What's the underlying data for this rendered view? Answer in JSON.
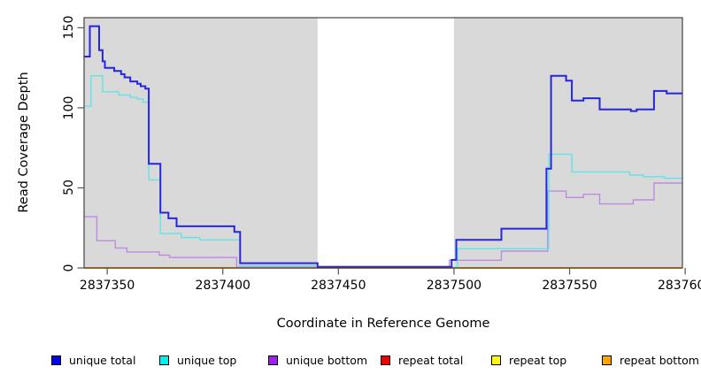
{
  "chart_data": {
    "type": "line",
    "subtype": "step-coverage",
    "title": "",
    "xlabel": "Coordinate in Reference Genome",
    "ylabel": "Read Coverage Depth",
    "xlim": [
      2837340,
      2837598.8
    ],
    "ylim": [
      0,
      156.3
    ],
    "x_end": 2837598.8,
    "x_ticks": [
      2837350,
      2837400,
      2837450,
      2837500,
      2837550,
      2837600
    ],
    "x_tick_labels": [
      "2837350",
      "2837400",
      "2837450",
      "2837500",
      "2837550",
      "2837600"
    ],
    "y_ticks": [
      0,
      50,
      100,
      150
    ],
    "y_tick_labels": [
      "0",
      "50",
      "100",
      "150"
    ],
    "grid": false,
    "panel_background": "#d9d9d9",
    "gap_region": {
      "start": 2837441,
      "end": 2837500,
      "color": "#ffffff"
    },
    "axis_color": "#444444",
    "tick_color": "#555555",
    "series": [
      {
        "name": "repeat total",
        "color": "#dd0000",
        "line_width": 1.4,
        "steps": [
          [
            2837340,
            0
          ]
        ]
      },
      {
        "name": "repeat top",
        "color": "#ffff00",
        "line_width": 1.4,
        "steps": [
          [
            2837340,
            0
          ]
        ]
      },
      {
        "name": "repeat bottom",
        "color": "#ff9800",
        "line_width": 1.8,
        "steps": [
          [
            2837340,
            0
          ]
        ]
      },
      {
        "name": "unique bottom",
        "color": "#bd8be0",
        "line_width": 1.4,
        "steps": [
          [
            2837340,
            32
          ],
          [
            2837345.5,
            17
          ],
          [
            2837353.5,
            12.5
          ],
          [
            2837358.5,
            10
          ],
          [
            2837372.5,
            8
          ],
          [
            2837377,
            6.5
          ],
          [
            2837406,
            0.5
          ],
          [
            2837441,
            0.4
          ],
          [
            2837498,
            4.8
          ],
          [
            2837520.5,
            10.5
          ],
          [
            2837540.5,
            48
          ],
          [
            2837548.5,
            44
          ],
          [
            2837556,
            46
          ],
          [
            2837563,
            40
          ],
          [
            2837577.5,
            42.5
          ],
          [
            2837586.5,
            53
          ]
        ]
      },
      {
        "name": "unique top",
        "color": "#63e3e8",
        "line_width": 1.4,
        "steps": [
          [
            2837340,
            101
          ],
          [
            2837343,
            120
          ],
          [
            2837348,
            110
          ],
          [
            2837355,
            108
          ],
          [
            2837360,
            106.5
          ],
          [
            2837363,
            105.5
          ],
          [
            2837365.5,
            103.5
          ],
          [
            2837368,
            55
          ],
          [
            2837373,
            21.5
          ],
          [
            2837382,
            19
          ],
          [
            2837390,
            17.5
          ],
          [
            2837407.5,
            1.5
          ],
          [
            2837441,
            0.4
          ],
          [
            2837501.5,
            12
          ],
          [
            2837541,
            71
          ],
          [
            2837551,
            60
          ],
          [
            2837576,
            58
          ],
          [
            2837582,
            57
          ],
          [
            2837591,
            56
          ]
        ]
      },
      {
        "name": "unique total",
        "color": "#2626dd",
        "line_width": 2,
        "steps": [
          [
            2837340,
            132
          ],
          [
            2837342.5,
            151
          ],
          [
            2837346.5,
            136
          ],
          [
            2837348,
            129
          ],
          [
            2837349,
            125
          ],
          [
            2837353,
            123
          ],
          [
            2837356,
            121
          ],
          [
            2837357.5,
            119
          ],
          [
            2837360,
            116.5
          ],
          [
            2837363,
            115
          ],
          [
            2837364.5,
            113.5
          ],
          [
            2837366.5,
            112
          ],
          [
            2837368,
            65
          ],
          [
            2837373,
            34.5
          ],
          [
            2837376.5,
            31
          ],
          [
            2837380,
            26
          ],
          [
            2837405,
            22.5
          ],
          [
            2837407.5,
            3
          ],
          [
            2837441,
            0.7
          ],
          [
            2837499,
            5
          ],
          [
            2837501,
            17.5
          ],
          [
            2837520.5,
            24.5
          ],
          [
            2837540,
            62
          ],
          [
            2837542,
            120
          ],
          [
            2837548.5,
            117
          ],
          [
            2837551,
            104.5
          ],
          [
            2837556,
            106
          ],
          [
            2837563,
            99
          ],
          [
            2837576.5,
            98
          ],
          [
            2837579,
            99
          ],
          [
            2837586.5,
            110.5
          ],
          [
            2837592,
            109
          ]
        ]
      }
    ],
    "legend": {
      "position": "bottom",
      "items": [
        {
          "label": "unique total",
          "color": "#0000ee"
        },
        {
          "label": "unique top",
          "color": "#00eeee"
        },
        {
          "label": "unique bottom",
          "color": "#a020f0"
        },
        {
          "label": "repeat total",
          "color": "#ee0000"
        },
        {
          "label": "repeat top",
          "color": "#ffff00"
        },
        {
          "label": "repeat bottom",
          "color": "#ffa500"
        }
      ]
    }
  }
}
